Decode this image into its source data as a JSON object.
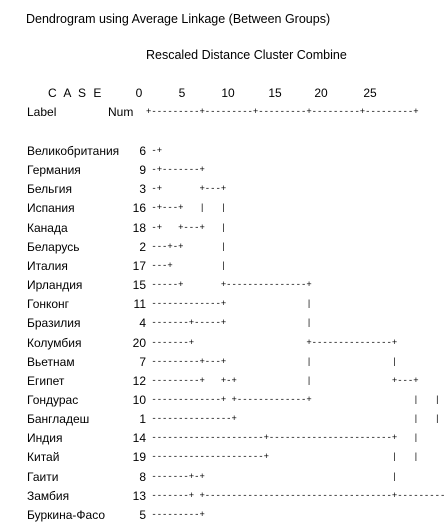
{
  "title": "Dendrogram using Average Linkage (Between Groups)",
  "subtitle": "Rescaled Distance Cluster Combine",
  "header": {
    "case": "C A S E",
    "label": "Label",
    "num": "Num",
    "ticks": [
      "0",
      "5",
      "10",
      "15",
      "20",
      "25"
    ],
    "scale_line": "+---------+---------+---------+---------+---------+"
  },
  "rows": [
    {
      "label": "Великобритания",
      "num": "6",
      "tree": " -+"
    },
    {
      "label": "Германия",
      "num": "9",
      "tree": " -+-------+"
    },
    {
      "label": "Бельгия",
      "num": "3",
      "tree": " -+       +---+"
    },
    {
      "label": "Испания",
      "num": "16",
      "tree": " -+---+   |   |"
    },
    {
      "label": "Канада",
      "num": "18",
      "tree": " -+   +---+   |"
    },
    {
      "label": "Беларусь",
      "num": "2",
      "tree": " ---+-+       |"
    },
    {
      "label": "Италия",
      "num": "17",
      "tree": " ---+         |"
    },
    {
      "label": "Ирландия",
      "num": "15",
      "tree": " -----+       +---------------+"
    },
    {
      "label": "Гонконг",
      "num": "11",
      "tree": " -------------+               |"
    },
    {
      "label": "Бразилия",
      "num": "4",
      "tree": " -------+-----+               |"
    },
    {
      "label": "Колумбия",
      "num": "20",
      "tree": " -------+                     +---------------+"
    },
    {
      "label": "Вьетнам",
      "num": "7",
      "tree": " ---------+---+               |               |"
    },
    {
      "label": "Египет",
      "num": "12",
      "tree": " ---------+   +-+             |               +---+"
    },
    {
      "label": "Гондурас",
      "num": "10",
      "tree": " -------------+ +-------------+                   |   |"
    },
    {
      "label": "Бангладеш",
      "num": "1",
      "tree": " ---------------+                                 |   |"
    },
    {
      "label": "Индия",
      "num": "14",
      "tree": " ---------------------+-----------------------+   |"
    },
    {
      "label": "Китай",
      "num": "19",
      "tree": " ---------------------+                       |   |"
    },
    {
      "label": "Гаити",
      "num": "8",
      "tree": " -------+-+                                   |"
    },
    {
      "label": "Замбия",
      "num": "13",
      "tree": " -------+ +-----------------------------------+---------+"
    },
    {
      "label": "Буркина-Фасо",
      "num": "5",
      "tree": " ---------+"
    }
  ]
}
